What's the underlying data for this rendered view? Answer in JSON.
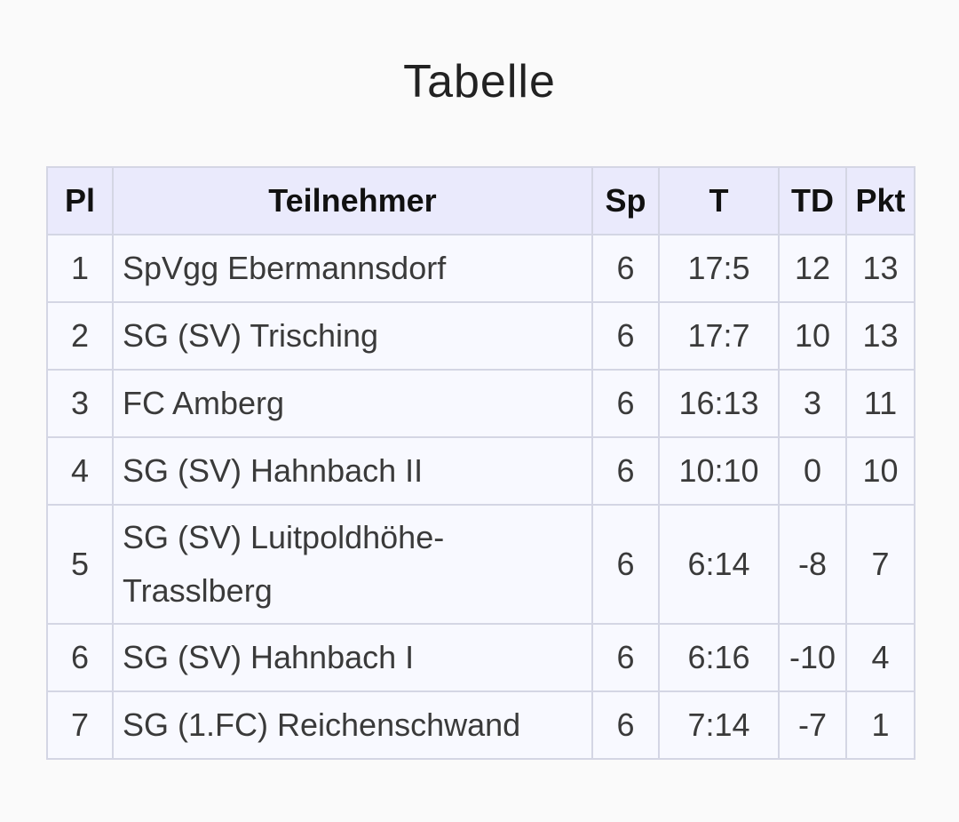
{
  "title": "Tabelle",
  "headers": {
    "pl": "Pl",
    "team": "Teilnehmer",
    "sp": "Sp",
    "t": "T",
    "td": "TD",
    "pkt": "Pkt"
  },
  "rows": [
    {
      "pl": "1",
      "team": "SpVgg Ebermannsdorf",
      "sp": "6",
      "t": "17:5",
      "td": "12",
      "pkt": "13"
    },
    {
      "pl": "2",
      "team": "SG (SV) Trisching",
      "sp": "6",
      "t": "17:7",
      "td": "10",
      "pkt": "13"
    },
    {
      "pl": "3",
      "team": "FC Amberg",
      "sp": "6",
      "t": "16:13",
      "td": "3",
      "pkt": "11"
    },
    {
      "pl": "4",
      "team": "SG (SV) Hahnbach II",
      "sp": "6",
      "t": "10:10",
      "td": "0",
      "pkt": "10"
    },
    {
      "pl": "5",
      "team": "SG (SV) Luitpoldhöhe-Trasslberg",
      "sp": "6",
      "t": "6:14",
      "td": "-8",
      "pkt": "7"
    },
    {
      "pl": "6",
      "team": "SG (SV) Hahnbach I",
      "sp": "6",
      "t": "6:16",
      "td": "-10",
      "pkt": "4"
    },
    {
      "pl": "7",
      "team": "SG (1.FC) Reichenschwand",
      "sp": "6",
      "t": "7:14",
      "td": "-7",
      "pkt": "1"
    }
  ]
}
